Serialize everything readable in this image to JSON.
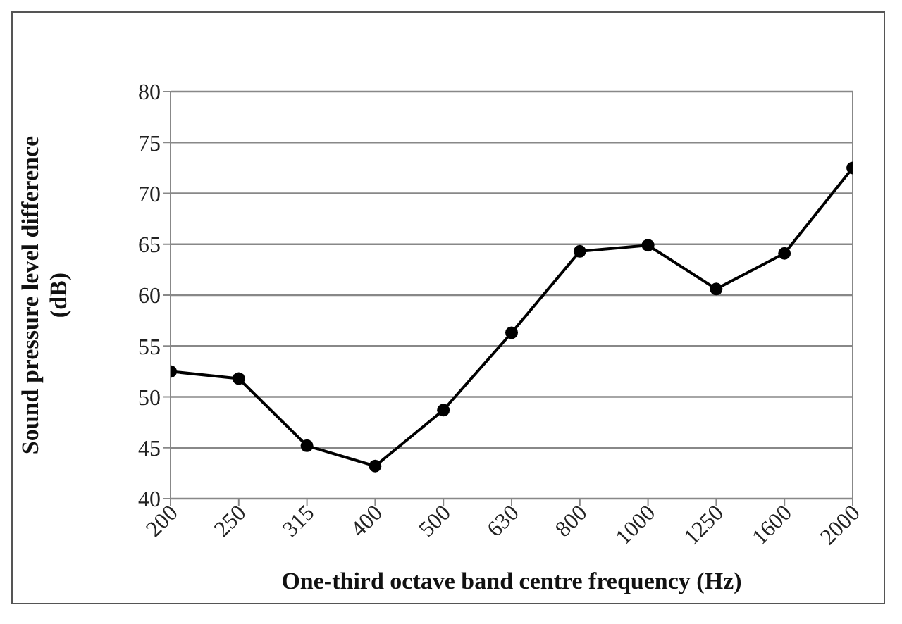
{
  "chart_data": {
    "type": "line",
    "xlabel": "One-third octave band centre frequency (Hz)",
    "ylabel": "Sound pressure level difference (dB)",
    "categories": [
      "200",
      "250",
      "315",
      "400",
      "500",
      "630",
      "800",
      "1000",
      "1250",
      "1600",
      "2000"
    ],
    "series": [
      {
        "color": "#000000",
        "values": [
          52.5,
          51.8,
          45.2,
          43.2,
          48.7,
          56.3,
          64.3,
          64.9,
          60.6,
          64.1,
          72.5
        ]
      }
    ],
    "ylim": [
      40,
      80
    ],
    "yticks": [
      40,
      45,
      50,
      55,
      60,
      65,
      70,
      75,
      80
    ],
    "grid": "y",
    "marker": "circle",
    "line_style": "solid"
  }
}
